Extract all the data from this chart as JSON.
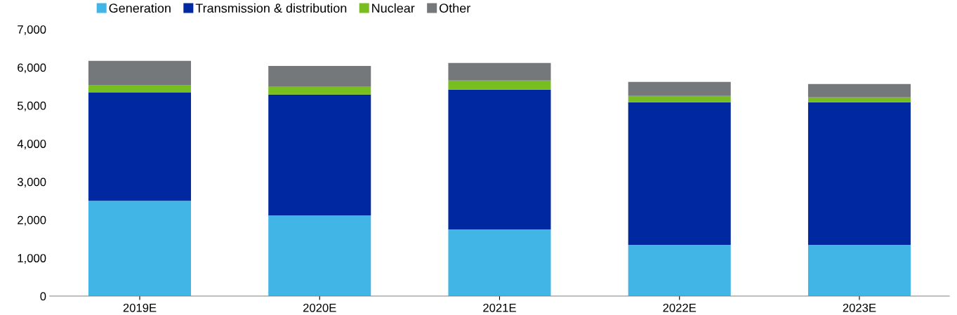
{
  "chart_data": {
    "type": "bar",
    "stacked": true,
    "categories": [
      "2019E",
      "2020E",
      "2021E",
      "2022E",
      "2023E"
    ],
    "series": [
      {
        "name": "Generation",
        "color": "#41b6e6",
        "values": [
          2500,
          2120,
          1750,
          1345,
          1345
        ]
      },
      {
        "name": "Transmission & distribution",
        "color": "#0028a0",
        "values": [
          2840,
          3170,
          3665,
          3740,
          3740
        ]
      },
      {
        "name": "Nuclear",
        "color": "#78be20",
        "values": [
          200,
          200,
          240,
          165,
          130
        ]
      },
      {
        "name": "Other",
        "color": "#75787b",
        "values": [
          630,
          550,
          460,
          370,
          350
        ]
      }
    ],
    "ylim": [
      0,
      7000
    ],
    "yticks": [
      {
        "value": 0,
        "label": "0"
      },
      {
        "value": 1000,
        "label": "1,000"
      },
      {
        "value": 2000,
        "label": "2,000"
      },
      {
        "value": 3000,
        "label": "3,000"
      },
      {
        "value": 4000,
        "label": "4,000"
      },
      {
        "value": 5000,
        "label": "5,000"
      },
      {
        "value": 6000,
        "label": "6,000"
      },
      {
        "value": 7000,
        "label": "7,000"
      }
    ],
    "grid": false,
    "legend": "top left"
  }
}
